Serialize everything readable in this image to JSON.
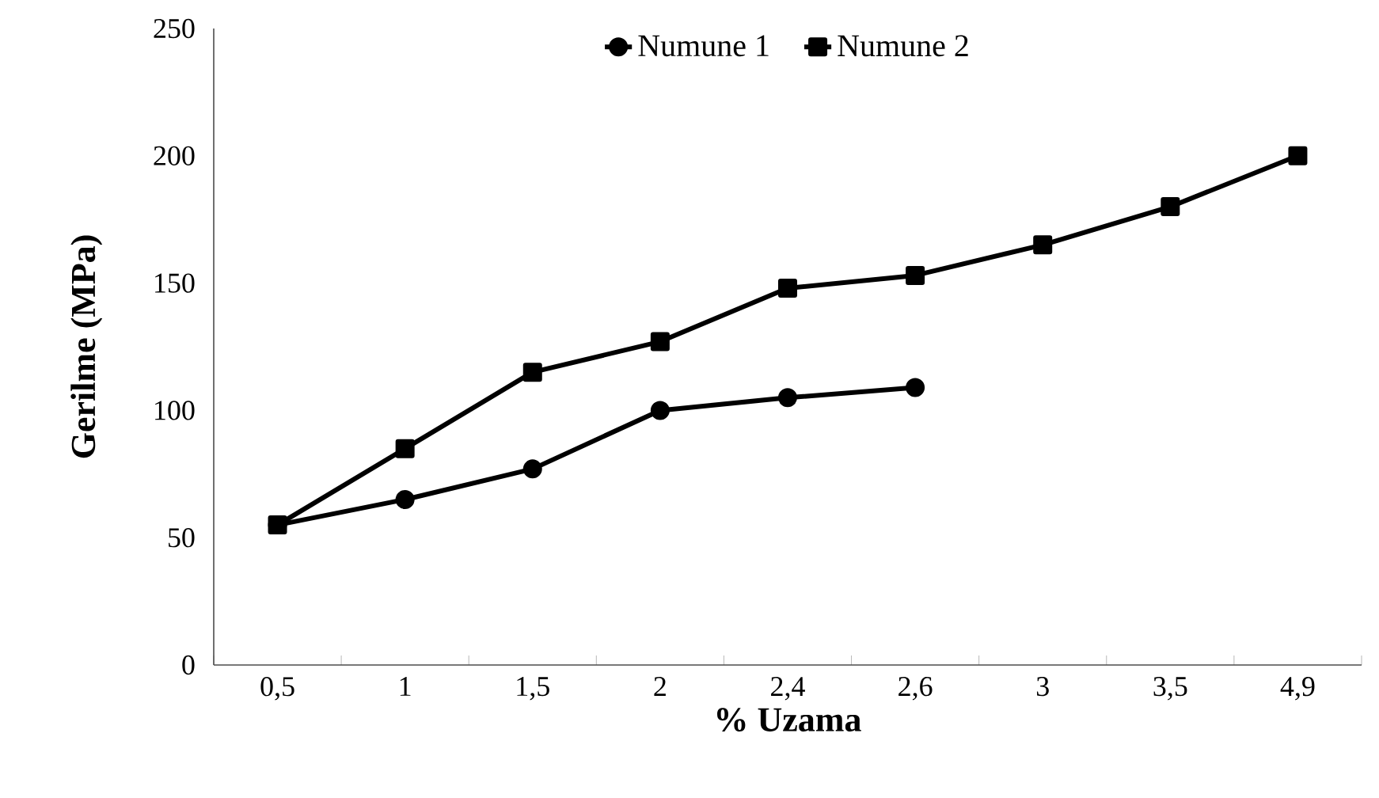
{
  "chart_data": {
    "type": "line",
    "xlabel": "% Uzama",
    "ylabel": "Gerilme (MPa)",
    "categories": [
      "0,5",
      "1",
      "1,5",
      "2",
      "2,4",
      "2,6",
      "3",
      "3,5",
      "4,9"
    ],
    "ylim": [
      0,
      250
    ],
    "yticks": [
      0,
      50,
      100,
      150,
      200,
      250
    ],
    "grid": false,
    "legend": "top",
    "line_style": "solid",
    "series": [
      {
        "name": "Numune 1",
        "color": "#000000",
        "marker": "circle",
        "values": [
          55,
          65,
          77,
          100,
          105,
          109,
          null,
          null,
          null
        ]
      },
      {
        "name": "Numune 2",
        "color": "#000000",
        "marker": "square",
        "values": [
          55,
          85,
          115,
          127,
          148,
          153,
          165,
          180,
          200
        ]
      }
    ]
  }
}
